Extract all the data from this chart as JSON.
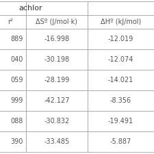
{
  "top_label": "achlor",
  "col1_header": "r²",
  "col2_header": "ΔSº (J/mol·k)",
  "col3_header": "ΔHº (kJ/mol)",
  "rows": [
    [
      " 889",
      "-16.998",
      "-12.019"
    ],
    [
      " 040",
      "-30.198",
      "-12.074"
    ],
    [
      " 059",
      "-28.199",
      "-14.021"
    ],
    [
      " 999",
      "-42.127",
      "-8.356"
    ],
    [
      " 088",
      "-30.832",
      "-19.491"
    ],
    [
      " 390",
      "-33.485",
      "-5.887"
    ]
  ],
  "border_color": "#aaaaaa",
  "text_color": "#555555",
  "fig_bg": "#ffffff",
  "fontsize": 7.0,
  "header_fontsize": 7.0
}
